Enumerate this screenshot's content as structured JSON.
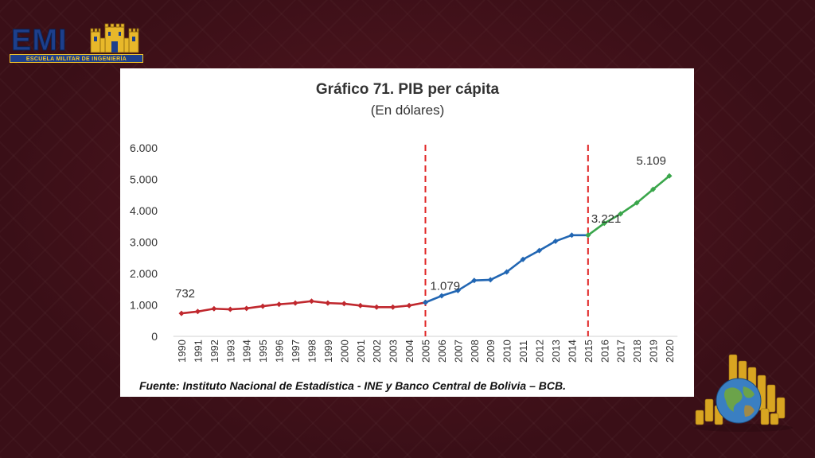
{
  "logo": {
    "text": "EMI",
    "subtitle": "ESCUELA MILITAR DE INGENIERÍA"
  },
  "chart_data": {
    "type": "line",
    "title": "Gráfico 71. PIB per cápita",
    "subtitle": "(En dólares)",
    "source": "Fuente: Instituto Nacional de Estadística - INE y Banco Central de Bolivia – BCB.",
    "ylim": [
      0,
      6000
    ],
    "yticks": [
      0,
      1000,
      2000,
      3000,
      4000,
      5000,
      6000
    ],
    "ytick_labels": [
      "0",
      "1.000",
      "2.000",
      "3.000",
      "4.000",
      "5.000",
      "6.000"
    ],
    "grid": false,
    "x": [
      "1990",
      "1991",
      "1992",
      "1993",
      "1994",
      "1995",
      "1996",
      "1997",
      "1998",
      "1999",
      "2000",
      "2001",
      "2002",
      "2003",
      "2004",
      "2005",
      "2006",
      "2007",
      "2008",
      "2009",
      "2010",
      "2011",
      "2012",
      "2013",
      "2014",
      "2015",
      "2016",
      "2017",
      "2018",
      "2019",
      "2020"
    ],
    "series": [
      {
        "color": "#c0282e",
        "x": [
          "1990",
          "1991",
          "1992",
          "1993",
          "1994",
          "1995",
          "1996",
          "1997",
          "1998",
          "1999",
          "2000",
          "2001",
          "2002",
          "2003",
          "2004",
          "2005"
        ],
        "values": [
          732,
          790,
          880,
          860,
          890,
          960,
          1020,
          1060,
          1120,
          1060,
          1040,
          980,
          930,
          930,
          980,
          1079
        ]
      },
      {
        "color": "#2166b3",
        "x": [
          "2005",
          "2006",
          "2007",
          "2008",
          "2009",
          "2010",
          "2011",
          "2012",
          "2013",
          "2014",
          "2015"
        ],
        "values": [
          1079,
          1290,
          1460,
          1780,
          1800,
          2050,
          2450,
          2730,
          3030,
          3220,
          3221
        ]
      },
      {
        "color": "#3aa64b",
        "x": [
          "2015",
          "2016",
          "2017",
          "2018",
          "2019",
          "2020"
        ],
        "values": [
          3221,
          3600,
          3900,
          4250,
          4680,
          5109
        ]
      }
    ],
    "vlines": [
      "2005",
      "2015"
    ],
    "vline_color": "#e02424",
    "annotations": [
      {
        "x": "1990",
        "y": 732,
        "label": "732"
      },
      {
        "x": "2005",
        "y": 1079,
        "label": "1.079"
      },
      {
        "x": "2015",
        "y": 3221,
        "label": "3.221"
      },
      {
        "x": "2020",
        "y": 5109,
        "label": "5.109"
      }
    ]
  }
}
